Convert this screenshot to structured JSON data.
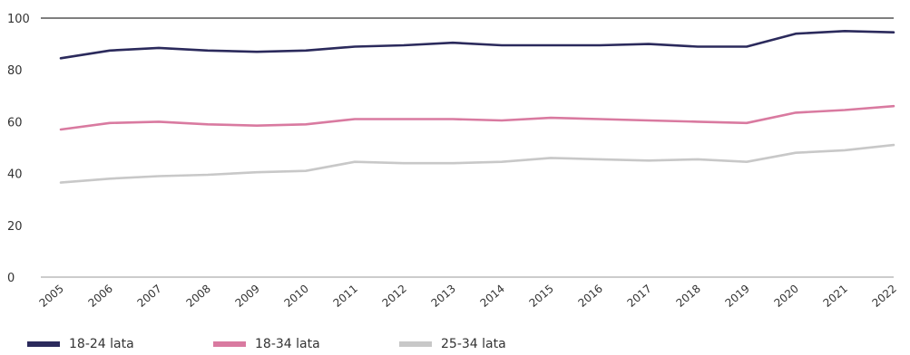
{
  "chart_data": {
    "type": "line",
    "x": [
      "2005",
      "2006",
      "2007",
      "2008",
      "2009",
      "2010",
      "2011",
      "2012",
      "2013",
      "2014",
      "2015",
      "2016",
      "2017",
      "2018",
      "2019",
      "2020",
      "2021",
      "2022"
    ],
    "ylim": [
      0,
      100
    ],
    "yticks": [
      0,
      20,
      40,
      60,
      80,
      100
    ],
    "grid": false,
    "legend_position": "bottom-left",
    "series": [
      {
        "name": "18-24 lata",
        "color": "#2b2a5c",
        "values": [
          84.5,
          87.5,
          88.5,
          87.5,
          87.0,
          87.5,
          89.0,
          89.5,
          90.5,
          89.5,
          89.5,
          89.5,
          90.0,
          89.0,
          89.0,
          94.0,
          95.0,
          94.5
        ]
      },
      {
        "name": "18-34 lata",
        "color": "#d97aa0",
        "values": [
          57.0,
          59.5,
          60.0,
          59.0,
          58.5,
          59.0,
          61.0,
          61.0,
          61.0,
          60.5,
          61.5,
          61.0,
          60.5,
          60.0,
          59.5,
          63.5,
          64.5,
          66.0
        ]
      },
      {
        "name": "25-34 lata",
        "color": "#c8c8c8",
        "values": [
          36.5,
          38.0,
          39.0,
          39.5,
          40.5,
          41.0,
          44.5,
          44.0,
          44.0,
          44.5,
          46.0,
          45.5,
          45.0,
          45.5,
          44.5,
          48.0,
          49.0,
          51.0
        ]
      }
    ]
  }
}
